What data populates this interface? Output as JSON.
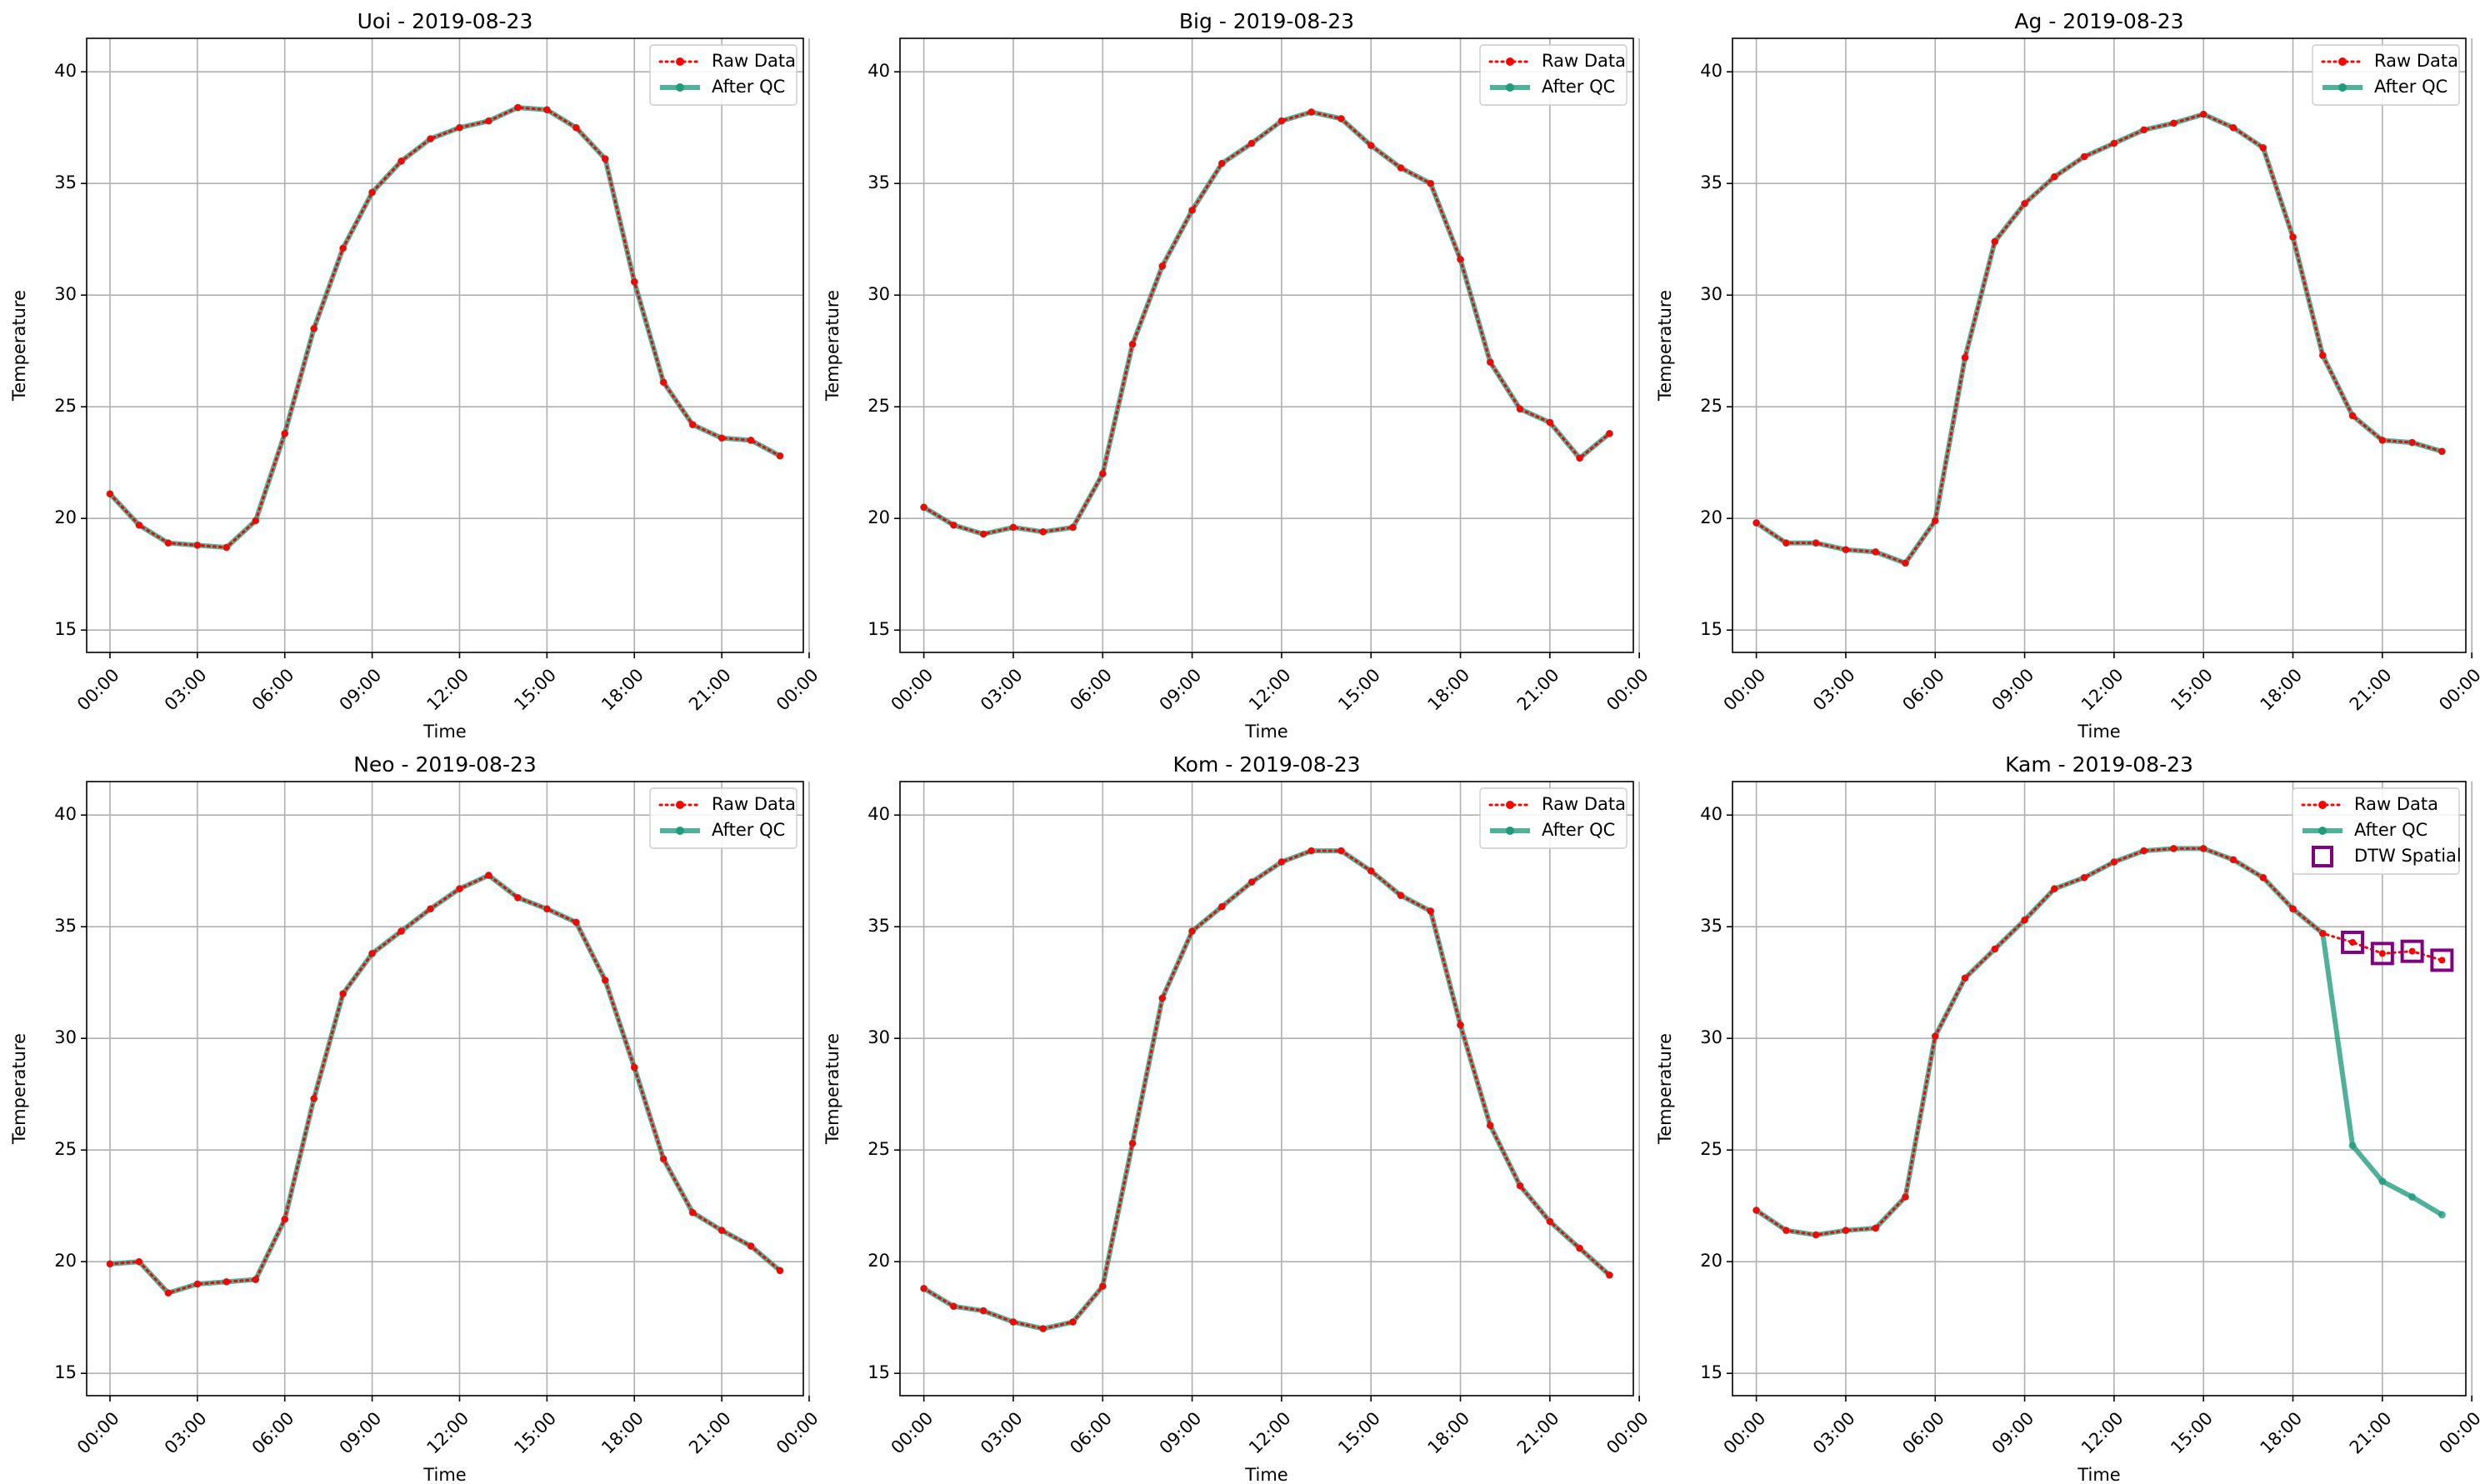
{
  "chart_data": [
    {
      "type": "line",
      "title": "Uoi - 2019-08-23",
      "xlabel": "Time",
      "ylabel": "Temperature",
      "ylim": [
        14,
        41.5
      ],
      "xlim": [
        -0.8,
        23.8
      ],
      "yticks": [
        15,
        20,
        25,
        30,
        35,
        40
      ],
      "xticks": [
        0,
        3,
        6,
        9,
        12,
        15,
        18,
        21,
        24
      ],
      "xticklabels": [
        "00:00",
        "03:00",
        "06:00",
        "09:00",
        "12:00",
        "15:00",
        "18:00",
        "21:00",
        "00:00"
      ],
      "grid": true,
      "legend_position": "top-right",
      "legend": [
        "Raw Data",
        "After QC"
      ],
      "x": [
        0,
        1,
        2,
        3,
        4,
        5,
        6,
        7,
        8,
        9,
        10,
        11,
        12,
        13,
        14,
        15,
        16,
        17,
        18,
        19,
        20,
        21,
        22,
        23
      ],
      "series": [
        {
          "name": "Raw Data",
          "values": [
            21.1,
            19.7,
            18.9,
            18.8,
            18.7,
            19.9,
            23.8,
            28.5,
            32.1,
            34.6,
            36.0,
            37.0,
            37.5,
            37.8,
            38.4,
            38.3,
            37.5,
            36.1,
            30.6,
            26.1,
            24.2,
            23.6,
            23.5,
            22.8
          ]
        },
        {
          "name": "After QC",
          "values": [
            21.1,
            19.7,
            18.9,
            18.8,
            18.7,
            19.9,
            23.8,
            28.5,
            32.1,
            34.6,
            36.0,
            37.0,
            37.5,
            37.8,
            38.4,
            38.3,
            37.5,
            36.1,
            30.6,
            26.1,
            24.2,
            23.6,
            23.5,
            22.8
          ]
        }
      ]
    },
    {
      "type": "line",
      "title": "Big - 2019-08-23",
      "xlabel": "Time",
      "ylabel": "Temperature",
      "ylim": [
        14,
        41.5
      ],
      "xlim": [
        -0.8,
        23.8
      ],
      "yticks": [
        15,
        20,
        25,
        30,
        35,
        40
      ],
      "xticks": [
        0,
        3,
        6,
        9,
        12,
        15,
        18,
        21,
        24
      ],
      "xticklabels": [
        "00:00",
        "03:00",
        "06:00",
        "09:00",
        "12:00",
        "15:00",
        "18:00",
        "21:00",
        "00:00"
      ],
      "grid": true,
      "legend_position": "top-right",
      "legend": [
        "Raw Data",
        "After QC"
      ],
      "x": [
        0,
        1,
        2,
        3,
        4,
        5,
        6,
        7,
        8,
        9,
        10,
        11,
        12,
        13,
        14,
        15,
        16,
        17,
        18,
        19,
        20,
        21,
        22,
        23
      ],
      "series": [
        {
          "name": "Raw Data",
          "values": [
            20.5,
            19.7,
            19.3,
            19.6,
            19.4,
            19.6,
            22.0,
            27.8,
            31.3,
            33.8,
            35.9,
            36.8,
            37.8,
            38.2,
            37.9,
            36.7,
            35.7,
            35.0,
            31.6,
            27.0,
            24.9,
            24.3,
            22.7,
            23.8
          ]
        },
        {
          "name": "After QC",
          "values": [
            20.5,
            19.7,
            19.3,
            19.6,
            19.4,
            19.6,
            22.0,
            27.8,
            31.3,
            33.8,
            35.9,
            36.8,
            37.8,
            38.2,
            37.9,
            36.7,
            35.7,
            35.0,
            31.6,
            27.0,
            24.9,
            24.3,
            22.7,
            23.8
          ]
        }
      ]
    },
    {
      "type": "line",
      "title": "Ag - 2019-08-23",
      "xlabel": "Time",
      "ylabel": "Temperature",
      "ylim": [
        14,
        41.5
      ],
      "xlim": [
        -0.8,
        23.8
      ],
      "yticks": [
        15,
        20,
        25,
        30,
        35,
        40
      ],
      "xticks": [
        0,
        3,
        6,
        9,
        12,
        15,
        18,
        21,
        24
      ],
      "xticklabels": [
        "00:00",
        "03:00",
        "06:00",
        "09:00",
        "12:00",
        "15:00",
        "18:00",
        "21:00",
        "00:00"
      ],
      "grid": true,
      "legend_position": "top-right",
      "legend": [
        "Raw Data",
        "After QC"
      ],
      "x": [
        0,
        1,
        2,
        3,
        4,
        5,
        6,
        7,
        8,
        9,
        10,
        11,
        12,
        13,
        14,
        15,
        16,
        17,
        18,
        19,
        20,
        21,
        22,
        23
      ],
      "series": [
        {
          "name": "Raw Data",
          "values": [
            19.8,
            18.9,
            18.9,
            18.6,
            18.5,
            18.0,
            19.9,
            27.2,
            32.4,
            34.1,
            35.3,
            36.2,
            36.8,
            37.4,
            37.7,
            38.1,
            37.5,
            36.6,
            32.6,
            27.3,
            24.6,
            23.5,
            23.4,
            23.0
          ]
        },
        {
          "name": "After QC",
          "values": [
            19.8,
            18.9,
            18.9,
            18.6,
            18.5,
            18.0,
            19.9,
            27.2,
            32.4,
            34.1,
            35.3,
            36.2,
            36.8,
            37.4,
            37.7,
            38.1,
            37.5,
            36.6,
            32.6,
            27.3,
            24.6,
            23.5,
            23.4,
            23.0
          ]
        }
      ]
    },
    {
      "type": "line",
      "title": "Neo - 2019-08-23",
      "xlabel": "Time",
      "ylabel": "Temperature",
      "ylim": [
        14,
        41.5
      ],
      "xlim": [
        -0.8,
        23.8
      ],
      "yticks": [
        15,
        20,
        25,
        30,
        35,
        40
      ],
      "xticks": [
        0,
        3,
        6,
        9,
        12,
        15,
        18,
        21,
        24
      ],
      "xticklabels": [
        "00:00",
        "03:00",
        "06:00",
        "09:00",
        "12:00",
        "15:00",
        "18:00",
        "21:00",
        "00:00"
      ],
      "grid": true,
      "legend_position": "top-right",
      "legend": [
        "Raw Data",
        "After QC"
      ],
      "x": [
        0,
        1,
        2,
        3,
        4,
        5,
        6,
        7,
        8,
        9,
        10,
        11,
        12,
        13,
        14,
        15,
        16,
        17,
        18,
        19,
        20,
        21,
        22,
        23
      ],
      "series": [
        {
          "name": "Raw Data",
          "values": [
            19.9,
            20.0,
            18.6,
            19.0,
            19.1,
            19.2,
            21.9,
            27.3,
            32.0,
            33.8,
            34.8,
            35.8,
            36.7,
            37.3,
            36.3,
            35.8,
            35.2,
            32.6,
            28.7,
            24.6,
            22.2,
            21.4,
            20.7,
            19.6
          ]
        },
        {
          "name": "After QC",
          "values": [
            19.9,
            20.0,
            18.6,
            19.0,
            19.1,
            19.2,
            21.9,
            27.3,
            32.0,
            33.8,
            34.8,
            35.8,
            36.7,
            37.3,
            36.3,
            35.8,
            35.2,
            32.6,
            28.7,
            24.6,
            22.2,
            21.4,
            20.7,
            19.6
          ]
        }
      ]
    },
    {
      "type": "line",
      "title": "Kom - 2019-08-23",
      "xlabel": "Time",
      "ylabel": "Temperature",
      "ylim": [
        14,
        41.5
      ],
      "xlim": [
        -0.8,
        23.8
      ],
      "yticks": [
        15,
        20,
        25,
        30,
        35,
        40
      ],
      "xticks": [
        0,
        3,
        6,
        9,
        12,
        15,
        18,
        21,
        24
      ],
      "xticklabels": [
        "00:00",
        "03:00",
        "06:00",
        "09:00",
        "12:00",
        "15:00",
        "18:00",
        "21:00",
        "00:00"
      ],
      "grid": true,
      "legend_position": "top-right",
      "legend": [
        "Raw Data",
        "After QC"
      ],
      "x": [
        0,
        1,
        2,
        3,
        4,
        5,
        6,
        7,
        8,
        9,
        10,
        11,
        12,
        13,
        14,
        15,
        16,
        17,
        18,
        19,
        20,
        21,
        22,
        23
      ],
      "series": [
        {
          "name": "Raw Data",
          "values": [
            18.8,
            18.0,
            17.8,
            17.3,
            17.0,
            17.3,
            18.9,
            25.3,
            31.8,
            34.8,
            35.9,
            37.0,
            37.9,
            38.4,
            38.4,
            37.5,
            36.4,
            35.7,
            30.6,
            26.1,
            23.4,
            21.8,
            20.6,
            19.4
          ]
        },
        {
          "name": "After QC",
          "values": [
            18.8,
            18.0,
            17.8,
            17.3,
            17.0,
            17.3,
            18.9,
            25.3,
            31.8,
            34.8,
            35.9,
            37.0,
            37.9,
            38.4,
            38.4,
            37.5,
            36.4,
            35.7,
            30.6,
            26.1,
            23.4,
            21.8,
            20.6,
            19.4
          ]
        }
      ]
    },
    {
      "type": "line",
      "title": "Kam - 2019-08-23",
      "xlabel": "Time",
      "ylabel": "Temperature",
      "ylim": [
        14,
        41.5
      ],
      "xlim": [
        -0.8,
        23.8
      ],
      "yticks": [
        15,
        20,
        25,
        30,
        35,
        40
      ],
      "xticks": [
        0,
        3,
        6,
        9,
        12,
        15,
        18,
        21,
        24
      ],
      "xticklabels": [
        "00:00",
        "03:00",
        "06:00",
        "09:00",
        "12:00",
        "15:00",
        "18:00",
        "21:00",
        "00:00"
      ],
      "grid": true,
      "legend_position": "top-right",
      "legend": [
        "Raw Data",
        "After QC",
        "DTW Spatial"
      ],
      "x": [
        0,
        1,
        2,
        3,
        4,
        5,
        6,
        7,
        8,
        9,
        10,
        11,
        12,
        13,
        14,
        15,
        16,
        17,
        18,
        19,
        20,
        21,
        22,
        23
      ],
      "series": [
        {
          "name": "Raw Data",
          "values": [
            22.3,
            21.4,
            21.2,
            21.4,
            21.5,
            22.9,
            30.1,
            32.7,
            34.0,
            35.3,
            36.7,
            37.2,
            37.9,
            38.4,
            38.5,
            38.5,
            38.0,
            37.2,
            35.8,
            34.7,
            34.3,
            33.8,
            33.9,
            33.5
          ]
        },
        {
          "name": "After QC",
          "values": [
            22.3,
            21.4,
            21.2,
            21.4,
            21.5,
            22.9,
            30.1,
            32.7,
            34.0,
            35.3,
            36.7,
            37.2,
            37.9,
            38.4,
            38.5,
            38.5,
            38.0,
            37.2,
            35.8,
            34.7,
            25.2,
            23.6,
            22.9,
            22.1
          ]
        }
      ],
      "flagged": {
        "name": "DTW Spatial",
        "x": [
          20,
          21,
          22,
          23
        ],
        "values": [
          34.3,
          33.8,
          33.9,
          33.5
        ]
      }
    }
  ]
}
